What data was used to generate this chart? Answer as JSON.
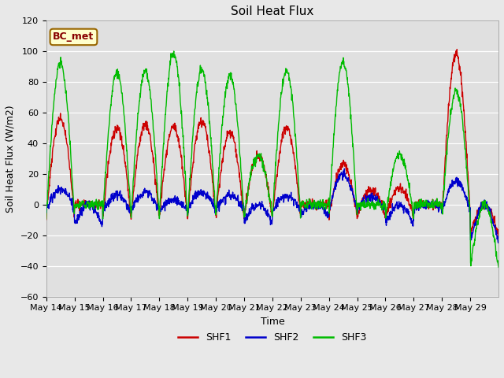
{
  "title": "Soil Heat Flux",
  "ylabel": "Soil Heat Flux (W/m2)",
  "xlabel": "Time",
  "ylim": [
    -60,
    120
  ],
  "yticks": [
    -60,
    -40,
    -20,
    0,
    20,
    40,
    60,
    80,
    100,
    120
  ],
  "colors": {
    "SHF1": "#cc0000",
    "SHF2": "#0000cc",
    "SHF3": "#00bb00"
  },
  "fig_bg": "#e8e8e8",
  "plot_bg": "#e0e0e0",
  "legend_label": "BC_met",
  "legend_bg": "#ffffcc",
  "legend_edge": "#996600",
  "series_names": [
    "SHF1",
    "SHF2",
    "SHF3"
  ],
  "x_tick_labels": [
    "May 14",
    "May 15",
    "May 16",
    "May 17",
    "May 18",
    "May 19",
    "May 20",
    "May 21",
    "May 22",
    "May 23",
    "May 24",
    "May 25",
    "May 26",
    "May 27",
    "May 28",
    "May 29"
  ],
  "title_fontsize": 11,
  "axis_label_fontsize": 9,
  "tick_fontsize": 8,
  "legend_fontsize": 9,
  "linewidth": 1.0
}
